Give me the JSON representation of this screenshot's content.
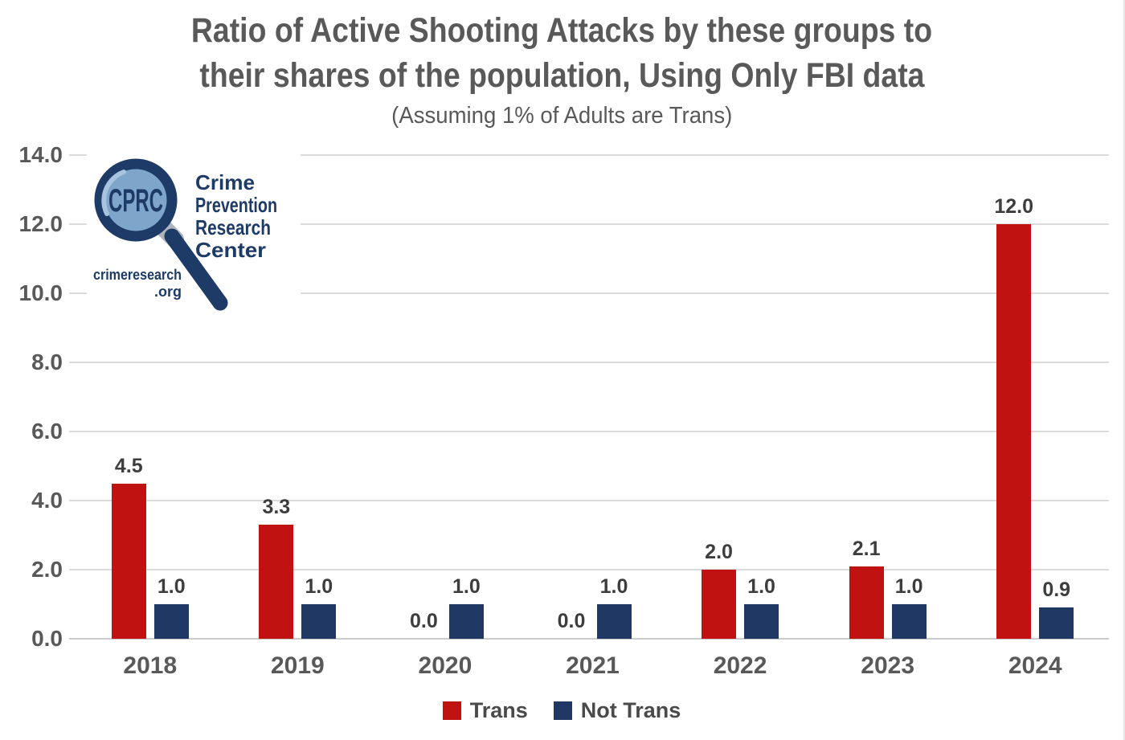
{
  "title_line1": "Ratio of Active Shooting Attacks by these groups to",
  "title_line2": "their shares of the population, Using Only FBI data",
  "subtitle": "(Assuming 1% of Adults are Trans)",
  "colors": {
    "trans_red": "#c11212",
    "not_trans_navy": "#1f3864",
    "gridline": "#dbdbdb",
    "axis_line": "#cccccc",
    "value_label": "#3d3d3d",
    "axis_label": "#595959",
    "title_text": "#595959",
    "logo_navy": "#1e3a66",
    "logo_lens_blue": "#7ea6cb",
    "logo_lens_highlight": "#a7c3dd",
    "logo_collar_gray": "#aeb4bd"
  },
  "logo": {
    "acronym": "CPRC",
    "org_lines": [
      "Crime",
      "Prevention",
      "Research",
      "Center"
    ],
    "url_line1": "crimeresearch",
    "url_line2": ".org"
  },
  "chart_data": {
    "type": "bar",
    "title": "Ratio of Active Shooting Attacks by these groups to their shares of the population, Using Only FBI data",
    "subtitle": "(Assuming 1% of Adults are Trans)",
    "categories": [
      "2018",
      "2019",
      "2020",
      "2021",
      "2022",
      "2023",
      "2024"
    ],
    "series": [
      {
        "name": "Trans",
        "color": "#c11212",
        "values": [
          4.5,
          3.3,
          0.0,
          0.0,
          2.0,
          2.1,
          12.0
        ],
        "labels": [
          "4.5",
          "3.3",
          "0.0",
          "0.0",
          "2.0",
          "2.1",
          "12.0"
        ]
      },
      {
        "name": "Not Trans",
        "color": "#1f3864",
        "values": [
          1.0,
          1.0,
          1.0,
          1.0,
          1.0,
          1.0,
          0.9
        ],
        "labels": [
          "1.0",
          "1.0",
          "1.0",
          "1.0",
          "1.0",
          "1.0",
          "0.9"
        ]
      }
    ],
    "ylim": [
      0,
      14
    ],
    "ytick_step": 2,
    "yticks": [
      "0.0",
      "2.0",
      "4.0",
      "6.0",
      "8.0",
      "10.0",
      "12.0",
      "14.0"
    ],
    "grid": true,
    "legend_position": "bottom"
  }
}
